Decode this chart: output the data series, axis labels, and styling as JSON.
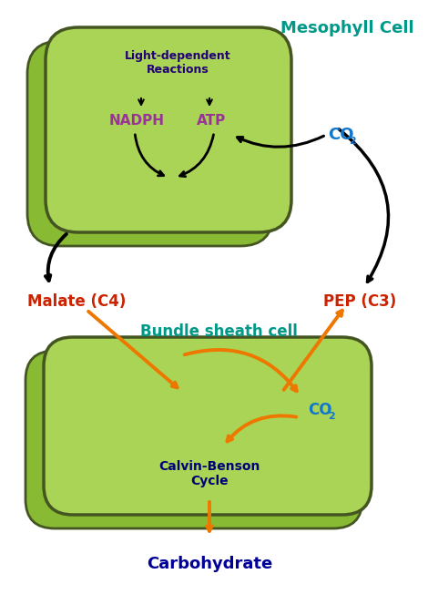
{
  "bg_color": "#ffffff",
  "cell_face_front": "#aad455",
  "cell_face_back": "#88bb33",
  "cell_edge_color": "#445522",
  "mesophyll_label": "Mesophyll Cell",
  "mesophyll_label_color": "#009988",
  "bundle_label": "Bundle sheath cell",
  "bundle_label_color": "#009988",
  "light_dep_text": "Light-dependent\nReactions",
  "light_dep_color": "#220077",
  "nadph_text": "NADPH",
  "nadph_color": "#993399",
  "atp_text": "ATP",
  "atp_color": "#993399",
  "co2_text1": "CO",
  "co2_sub1": "2",
  "co2_color": "#1177cc",
  "malate_text": "Malate (C4)",
  "malate_color": "#cc2200",
  "pep_text": "PEP (C3)",
  "pep_color": "#cc2200",
  "co2_text2": "CO",
  "co2_sub2": "2",
  "co2_color2": "#1177cc",
  "calvin_text": "Calvin-Benson\nCycle",
  "calvin_color": "#000077",
  "carbohydrate_text": "Carbohydrate",
  "carbohydrate_color": "#000099",
  "arrow_black": "#111111",
  "arrow_orange": "#ee7700"
}
